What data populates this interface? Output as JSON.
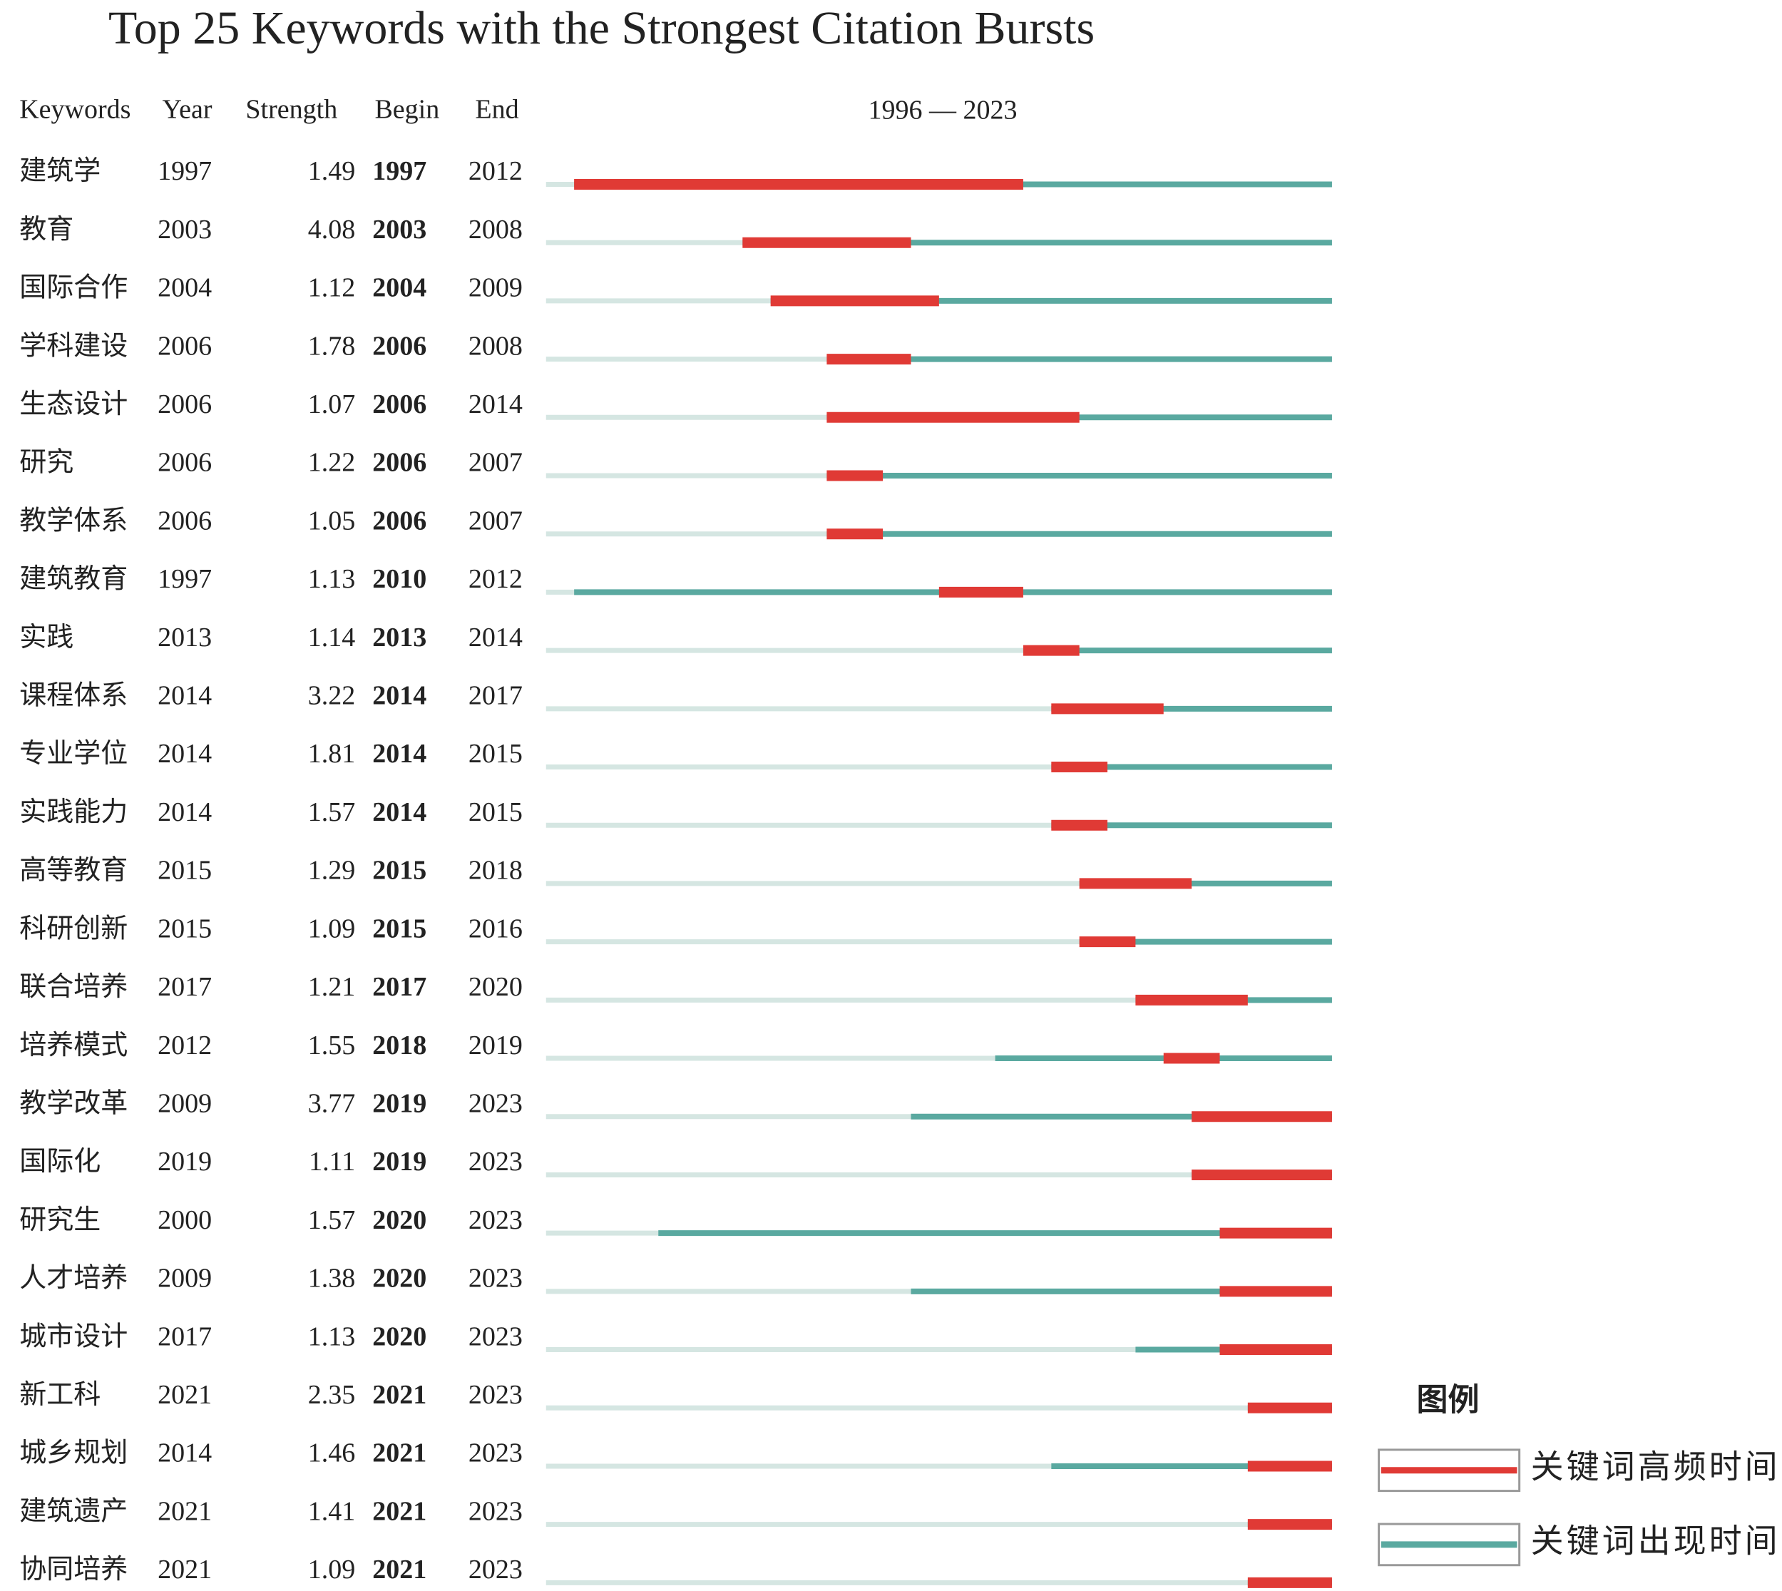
{
  "chart_data": {
    "type": "burst",
    "title": "Top 25 Keywords with the Strongest Citation Bursts",
    "columns": [
      "Keywords",
      "Year",
      "Strength",
      "Begin",
      "End"
    ],
    "timeline_label": "1996 — 2023",
    "xlim": [
      1996,
      2023
    ],
    "colors": {
      "burst": "#e03a35",
      "present": "#5aa9a0",
      "absent": "#d5e6e2"
    },
    "rows": [
      {
        "keyword": "建筑学",
        "year": 1997,
        "strength": 1.49,
        "begin": 1997,
        "end": 2012
      },
      {
        "keyword": "教育",
        "year": 2003,
        "strength": 4.08,
        "begin": 2003,
        "end": 2008
      },
      {
        "keyword": "国际合作",
        "year": 2004,
        "strength": 1.12,
        "begin": 2004,
        "end": 2009
      },
      {
        "keyword": "学科建设",
        "year": 2006,
        "strength": 1.78,
        "begin": 2006,
        "end": 2008
      },
      {
        "keyword": "生态设计",
        "year": 2006,
        "strength": 1.07,
        "begin": 2006,
        "end": 2014
      },
      {
        "keyword": "研究",
        "year": 2006,
        "strength": 1.22,
        "begin": 2006,
        "end": 2007
      },
      {
        "keyword": "教学体系",
        "year": 2006,
        "strength": 1.05,
        "begin": 2006,
        "end": 2007
      },
      {
        "keyword": "建筑教育",
        "year": 1997,
        "strength": 1.13,
        "begin": 2010,
        "end": 2012
      },
      {
        "keyword": "实践",
        "year": 2013,
        "strength": 1.14,
        "begin": 2013,
        "end": 2014
      },
      {
        "keyword": "课程体系",
        "year": 2014,
        "strength": 3.22,
        "begin": 2014,
        "end": 2017
      },
      {
        "keyword": "专业学位",
        "year": 2014,
        "strength": 1.81,
        "begin": 2014,
        "end": 2015
      },
      {
        "keyword": "实践能力",
        "year": 2014,
        "strength": 1.57,
        "begin": 2014,
        "end": 2015
      },
      {
        "keyword": "高等教育",
        "year": 2015,
        "strength": 1.29,
        "begin": 2015,
        "end": 2018
      },
      {
        "keyword": "科研创新",
        "year": 2015,
        "strength": 1.09,
        "begin": 2015,
        "end": 2016
      },
      {
        "keyword": "联合培养",
        "year": 2017,
        "strength": 1.21,
        "begin": 2017,
        "end": 2020
      },
      {
        "keyword": "培养模式",
        "year": 2012,
        "strength": 1.55,
        "begin": 2018,
        "end": 2019
      },
      {
        "keyword": "教学改革",
        "year": 2009,
        "strength": 3.77,
        "begin": 2019,
        "end": 2023
      },
      {
        "keyword": "国际化",
        "year": 2019,
        "strength": 1.11,
        "begin": 2019,
        "end": 2023
      },
      {
        "keyword": "研究生",
        "year": 2000,
        "strength": 1.57,
        "begin": 2020,
        "end": 2023
      },
      {
        "keyword": "人才培养",
        "year": 2009,
        "strength": 1.38,
        "begin": 2020,
        "end": 2023
      },
      {
        "keyword": "城市设计",
        "year": 2017,
        "strength": 1.13,
        "begin": 2020,
        "end": 2023
      },
      {
        "keyword": "新工科",
        "year": 2021,
        "strength": 2.35,
        "begin": 2021,
        "end": 2023
      },
      {
        "keyword": "城乡规划",
        "year": 2014,
        "strength": 1.46,
        "begin": 2021,
        "end": 2023
      },
      {
        "keyword": "建筑遗产",
        "year": 2021,
        "strength": 1.41,
        "begin": 2021,
        "end": 2023
      },
      {
        "keyword": "协同培养",
        "year": 2021,
        "strength": 1.09,
        "begin": 2021,
        "end": 2023
      }
    ],
    "legend": {
      "title": "图例",
      "burst": "关键词高频时间",
      "present": "关键词出现时间"
    }
  }
}
